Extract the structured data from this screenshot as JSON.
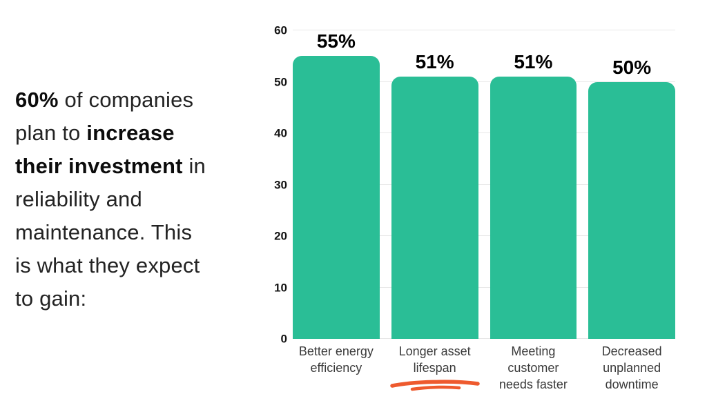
{
  "intro": {
    "lines": [
      [
        {
          "text": "60%",
          "bold": true
        },
        {
          "text": " of companies",
          "bold": false
        }
      ],
      [
        {
          "text": "plan to ",
          "bold": false
        },
        {
          "text": "increase",
          "bold": true
        }
      ],
      [
        {
          "text": "their investment",
          "bold": true
        },
        {
          "text": " in",
          "bold": false
        }
      ],
      [
        {
          "text": "reliability and",
          "bold": false
        }
      ],
      [
        {
          "text": "maintenance. This",
          "bold": false
        }
      ],
      [
        {
          "text": "is what they expect",
          "bold": false
        }
      ],
      [
        {
          "text": "to gain:",
          "bold": false
        }
      ]
    ]
  },
  "chart_data": {
    "type": "bar",
    "title": "",
    "categories": [
      "Better energy efficiency",
      "Longer asset lifespan",
      "Meeting customer needs faster",
      "Decreased unplanned downtime"
    ],
    "values": [
      55,
      51,
      51,
      50
    ],
    "value_labels": [
      "55%",
      "51%",
      "51%",
      "50%"
    ],
    "yticks": [
      0,
      10,
      20,
      30,
      40,
      50,
      60
    ],
    "ylim": [
      0,
      60
    ],
    "xlabel": "",
    "ylabel": "",
    "grid": true,
    "legend": false,
    "bar_color": "#2abe96",
    "gridline_color": "#e7e7e7",
    "annotations": {
      "underline": {
        "category_index": 1,
        "color": "#ee5a2e"
      }
    }
  }
}
